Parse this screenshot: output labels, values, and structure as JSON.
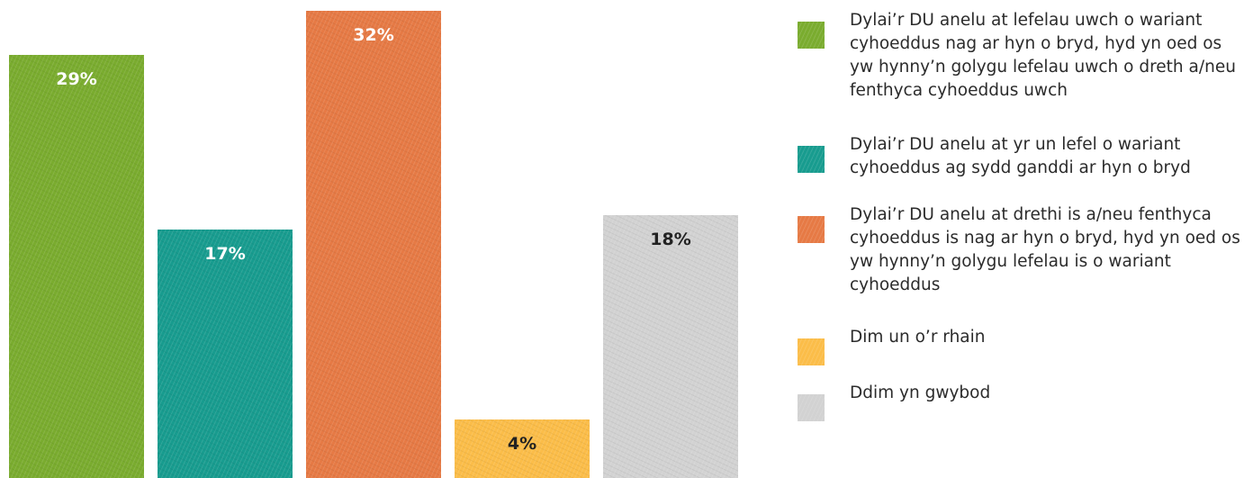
{
  "chart_data": {
    "type": "bar",
    "categories": [
      "Dylai’r DU anelu at lefelau uwch o wariant cyhoeddus nag ar hyn o bryd, hyd yn oed os yw hynny’n golygu lefelau uwch o dreth a/neu fenthyca cyhoeddus uwch",
      "Dylai’r DU anelu at yr un lefel o wariant cyhoeddus ag sydd ganddi ar hyn o bryd",
      "Dylai’r DU anelu at drethi is a/neu fenthyca cyhoeddus is nag ar hyn o bryd, hyd yn oed os yw hynny’n golygu lefelau is o wariant cyhoeddus",
      "Dim un o’r rhain",
      "Ddim yn gwybod"
    ],
    "values": [
      29,
      17,
      32,
      4,
      18
    ],
    "value_labels": [
      "29%",
      "17%",
      "32%",
      "4%",
      "18%"
    ],
    "colors": [
      "#7aac2f",
      "#189c8f",
      "#e67a45",
      "#fbbd49",
      "#d2d2d2"
    ],
    "label_colors": [
      "#ffffff",
      "#ffffff",
      "#ffffff",
      "#222222",
      "#222222"
    ],
    "ylim": [
      0,
      32
    ],
    "grid": false,
    "legend_position": "right"
  }
}
